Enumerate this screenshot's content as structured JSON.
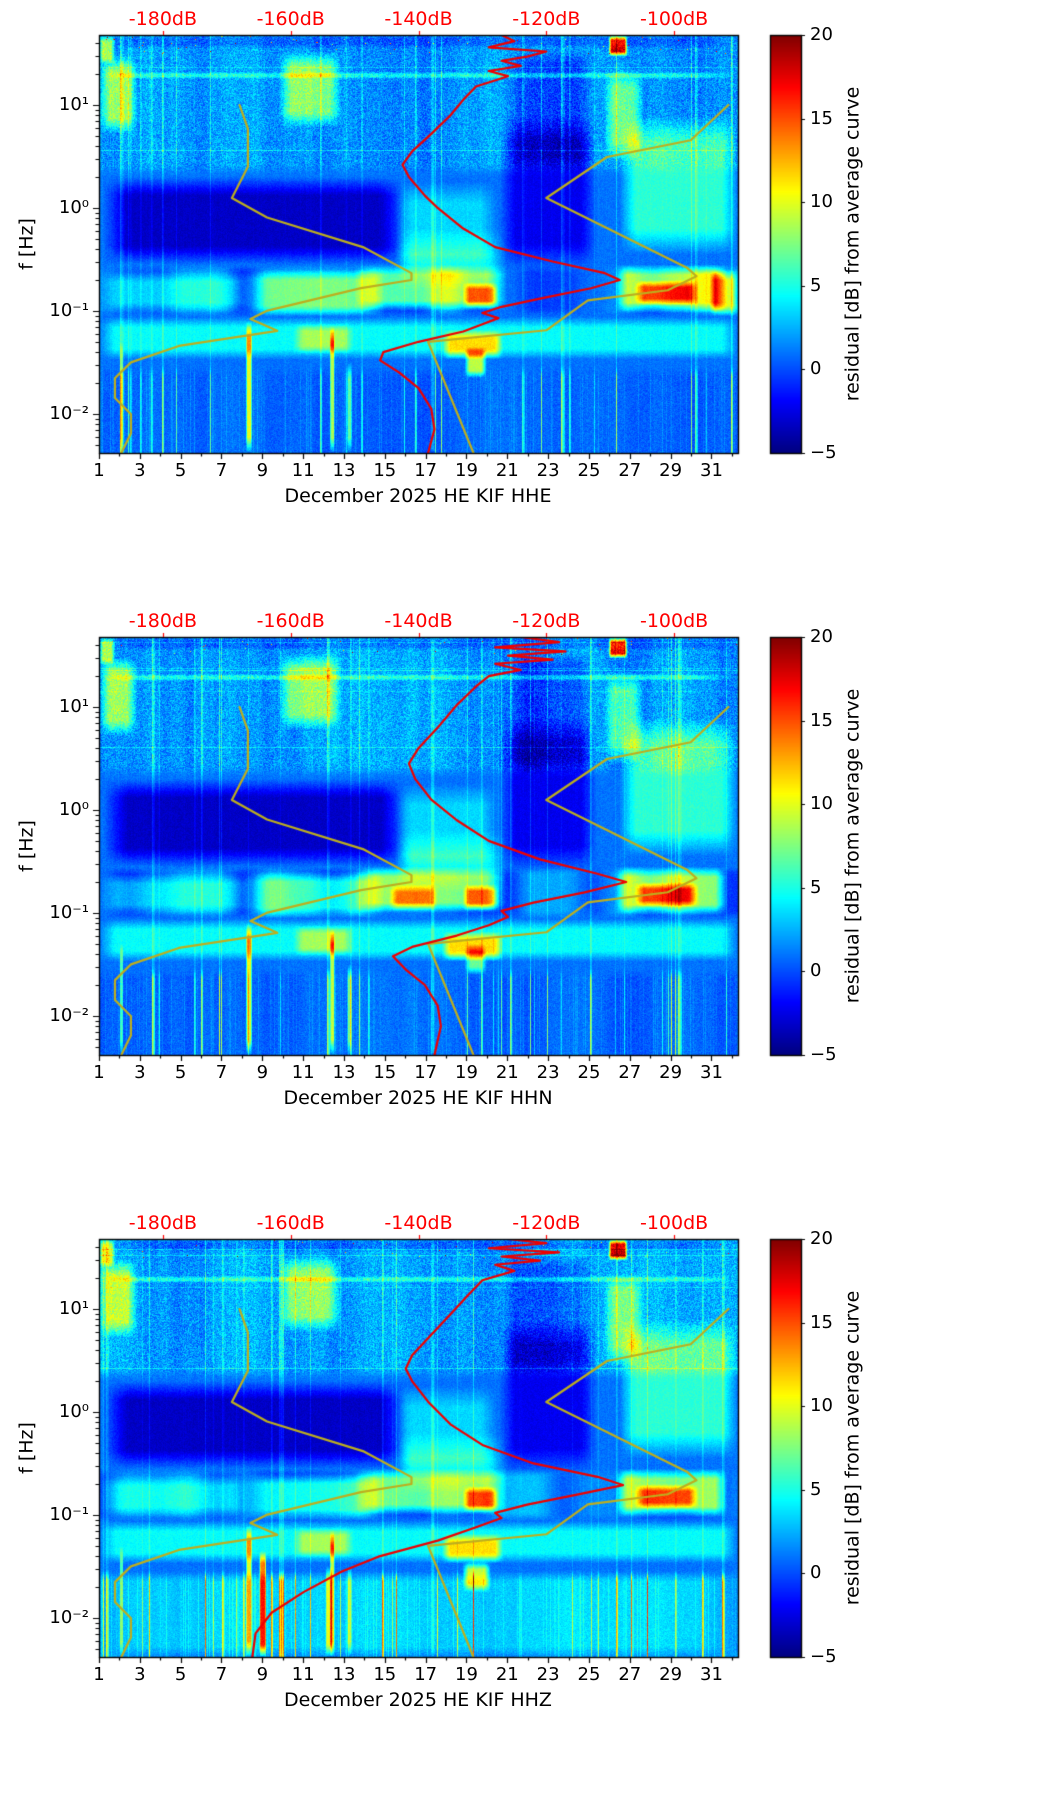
{
  "axes": {
    "ylabel": "f [Hz]",
    "colorbar_label": "residual [dB] from average curve",
    "top_tick_labels": [
      "-180dB",
      "-160dB",
      "-140dB",
      "-120dB",
      "-100dB"
    ],
    "x_tick_labels": [
      "1",
      "3",
      "5",
      "7",
      "9",
      "11",
      "13",
      "15",
      "17",
      "19",
      "21",
      "23",
      "25",
      "27",
      "29",
      "31"
    ],
    "y_tick_labels": [
      "10¹",
      "10⁰",
      "10⁻¹",
      "10⁻²"
    ],
    "colorbar_tick_labels": [
      "20",
      "15",
      "10",
      "5",
      "0",
      "−5"
    ]
  },
  "panels": [
    {
      "xlabel": "December 2025 HE KIF  HHE"
    },
    {
      "xlabel": "December 2025 HE KIF  HHN"
    },
    {
      "xlabel": "December 2025 HE KIF  HHZ"
    }
  ],
  "chart_data": {
    "type": "heatmap",
    "subtype": "seismic noise residual spectrograms, 3 components, with average-spectrum overlay curves",
    "x_axis": {
      "range_days": [
        1,
        32.3
      ],
      "tick_values": [
        1,
        3,
        5,
        7,
        9,
        11,
        13,
        15,
        17,
        19,
        21,
        23,
        25,
        27,
        29,
        31
      ]
    },
    "y_axis": {
      "label": "f [Hz]",
      "scale": "log10",
      "log_range": [
        -2.38,
        1.68
      ],
      "tick_exponents": [
        1,
        0,
        -1,
        -2
      ],
      "tick_values_hz": [
        10,
        1,
        0.1,
        0.01
      ]
    },
    "color_axis": {
      "label": "residual [dB] from average curve",
      "range": [
        -5,
        20
      ],
      "tick_values": [
        20,
        15,
        10,
        5,
        0,
        -5
      ],
      "colormap": "jet"
    },
    "top_axis": {
      "unit": "dB",
      "range_db": [
        -190,
        -90
      ],
      "tick_values": [
        -180,
        -160,
        -140,
        -120,
        -100
      ],
      "color": "#ff0000"
    },
    "overlay_curves": {
      "red_color": "#ee0000",
      "olive_color": "#bdae1f",
      "olive_curve_low_db_logf": [
        [
          -168,
          1.0
        ],
        [
          -166.7,
          0.77
        ],
        [
          -166.7,
          0.4
        ],
        [
          -169.2,
          0.097
        ],
        [
          -163.7,
          -0.093
        ],
        [
          -148.7,
          -0.38
        ],
        [
          -141.1,
          -0.633
        ],
        [
          -141.1,
          -0.7
        ],
        [
          -149,
          -0.778
        ],
        [
          -163.8,
          -1.0
        ],
        [
          -166.3,
          -1.079
        ],
        [
          -162.1,
          -1.193
        ],
        [
          -177.5,
          -1.34
        ],
        [
          -185,
          -1.5
        ],
        [
          -187.5,
          -1.653
        ],
        [
          -187.5,
          -1.845
        ],
        [
          -185,
          -2.004
        ],
        [
          -185,
          -2.188
        ],
        [
          -186.5,
          -2.38
        ]
      ],
      "olive_curve_high_db_logf": [
        [
          -91.5,
          1.0
        ],
        [
          -97.4,
          0.658
        ],
        [
          -110.5,
          0.495
        ],
        [
          -120,
          0.097
        ],
        [
          -98,
          -0.58
        ],
        [
          -96.5,
          -0.663
        ],
        [
          -101,
          -0.799
        ],
        [
          -113.5,
          -0.898
        ],
        [
          -120,
          -1.188
        ],
        [
          -138.5,
          -1.301
        ],
        [
          -131.4,
          -2.38
        ]
      ]
    },
    "heatmap_features": [
      [
        8,
        15,
        -1.05,
        -0.6,
        5,
        1.2,
        0.1
      ],
      [
        13.5,
        21,
        -1.0,
        -0.55,
        7,
        1.0,
        0.1
      ],
      [
        18.8,
        20.6,
        -0.98,
        -0.72,
        8,
        0.35,
        0.07
      ],
      [
        26.3,
        31.8,
        -1.02,
        -0.55,
        8,
        0.6,
        0.1
      ],
      [
        27.2,
        30.4,
        -0.95,
        -0.7,
        8,
        0.5,
        0.07
      ],
      [
        1,
        8.5,
        -1.02,
        -0.62,
        3,
        1.0,
        0.1
      ],
      [
        1,
        32.3,
        -1.47,
        -1.06,
        3.5,
        0.8,
        0.1
      ],
      [
        17.8,
        20.8,
        -1.47,
        -1.18,
        7,
        0.4,
        0.08
      ],
      [
        10.5,
        13.5,
        -1.42,
        -1.12,
        4,
        0.5,
        0.08
      ],
      [
        1.2,
        16,
        -0.55,
        0.3,
        -4.2,
        1.2,
        0.18
      ],
      [
        20.6,
        25.4,
        -0.6,
        0.9,
        -3.2,
        0.8,
        0.25
      ],
      [
        15.5,
        20.5,
        -0.65,
        0.25,
        2.5,
        0.8,
        0.2
      ],
      [
        26.5,
        32.3,
        -0.45,
        0.9,
        4.5,
        0.8,
        0.25
      ],
      [
        1,
        2.9,
        0.72,
        1.48,
        6.5,
        0.5,
        0.15
      ],
      [
        9.8,
        12.9,
        0.78,
        1.52,
        6,
        0.6,
        0.15
      ],
      [
        25.7,
        27.7,
        0.45,
        1.35,
        5,
        0.5,
        0.18
      ],
      [
        25.95,
        26.9,
        1.47,
        1.68,
        16,
        0.15,
        0.05
      ],
      [
        1,
        32.3,
        1.255,
        1.32,
        3,
        2,
        0.02
      ],
      [
        1,
        32.3,
        1.55,
        1.68,
        -1.3,
        2,
        0.04
      ],
      [
        20.8,
        25.3,
        0.35,
        1.55,
        -2.2,
        0.8,
        0.15
      ],
      [
        8.2,
        8.5,
        -2.38,
        -1.1,
        9,
        0.06,
        0.15
      ],
      [
        12.3,
        12.55,
        -2.38,
        -1.15,
        8,
        0.06,
        0.15
      ],
      [
        13.15,
        13.4,
        -2.38,
        -1.5,
        6,
        0.06,
        0.15
      ],
      [
        2.0,
        2.2,
        -2.38,
        -1.3,
        5,
        0.05,
        0.15
      ],
      [
        1,
        1.8,
        1.4,
        1.68,
        7,
        0.2,
        0.06
      ],
      [
        15.5,
        21,
        -0.8,
        -0.2,
        2.5,
        0.8,
        0.25
      ],
      [
        17.25,
        17.45,
        -2.38,
        1.68,
        2,
        0.05,
        0.05
      ]
    ],
    "panels": [
      {
        "channel": "HHE",
        "seed": 7,
        "stripe_gain": 1.0,
        "bottom_base": 0,
        "red_curve_db_logf": [
          [
            -127,
            1.68
          ],
          [
            -125,
            1.62
          ],
          [
            -129,
            1.56
          ],
          [
            -120,
            1.52
          ],
          [
            -123,
            1.47
          ],
          [
            -127,
            1.43
          ],
          [
            -124,
            1.38
          ],
          [
            -129,
            1.33
          ],
          [
            -126,
            1.28
          ],
          [
            -131,
            1.18
          ],
          [
            -133,
            1.05
          ],
          [
            -135,
            0.9
          ],
          [
            -138,
            0.72
          ],
          [
            -141,
            0.55
          ],
          [
            -142.5,
            0.42
          ],
          [
            -141.5,
            0.3
          ],
          [
            -139,
            0.12
          ],
          [
            -137,
            0
          ],
          [
            -133,
            -0.2
          ],
          [
            -128,
            -0.38
          ],
          [
            -119,
            -0.52
          ],
          [
            -111,
            -0.63
          ],
          [
            -108.5,
            -0.7
          ],
          [
            -113,
            -0.78
          ],
          [
            -121,
            -0.88
          ],
          [
            -127,
            -0.96
          ],
          [
            -130,
            -1.02
          ],
          [
            -127.5,
            -1.07
          ],
          [
            -130,
            -1.13
          ],
          [
            -133,
            -1.2
          ],
          [
            -140,
            -1.3
          ],
          [
            -145.5,
            -1.4
          ],
          [
            -146,
            -1.48
          ],
          [
            -143,
            -1.6
          ],
          [
            -140,
            -1.75
          ],
          [
            -138,
            -1.95
          ],
          [
            -137.5,
            -2.15
          ],
          [
            -138.5,
            -2.38
          ]
        ],
        "extra_features": [
          [
            18.9,
            20.0,
            -1.65,
            -1.35,
            8,
            0.25,
            0.07
          ],
          [
            30.9,
            32.3,
            -1.05,
            -0.6,
            7,
            0.3,
            0.1
          ]
        ]
      },
      {
        "channel": "HHN",
        "seed": 11,
        "stripe_gain": 1.05,
        "bottom_base": 0,
        "red_curve_db_logf": [
          [
            -124,
            1.68
          ],
          [
            -118,
            1.63
          ],
          [
            -128,
            1.58
          ],
          [
            -117,
            1.54
          ],
          [
            -126,
            1.5
          ],
          [
            -119,
            1.46
          ],
          [
            -128,
            1.42
          ],
          [
            -124,
            1.36
          ],
          [
            -129,
            1.3
          ],
          [
            -131,
            1.2
          ],
          [
            -134,
            1.02
          ],
          [
            -137,
            0.8
          ],
          [
            -140,
            0.6
          ],
          [
            -141.5,
            0.45
          ],
          [
            -140.5,
            0.3
          ],
          [
            -138,
            0.1
          ],
          [
            -134,
            -0.1
          ],
          [
            -129,
            -0.3
          ],
          [
            -121,
            -0.48
          ],
          [
            -112,
            -0.62
          ],
          [
            -107.5,
            -0.7
          ],
          [
            -114,
            -0.8
          ],
          [
            -122,
            -0.9
          ],
          [
            -127,
            -0.98
          ],
          [
            -126,
            -1.04
          ],
          [
            -129,
            -1.12
          ],
          [
            -134,
            -1.22
          ],
          [
            -141,
            -1.33
          ],
          [
            -144,
            -1.42
          ],
          [
            -142,
            -1.55
          ],
          [
            -139,
            -1.7
          ],
          [
            -137,
            -1.9
          ],
          [
            -136.5,
            -2.1
          ],
          [
            -137.5,
            -2.38
          ]
        ],
        "extra_features": [
          [
            15.2,
            17.6,
            -0.98,
            -0.72,
            6,
            0.4,
            0.08
          ],
          [
            18.9,
            20.0,
            -1.6,
            -1.3,
            6,
            0.3,
            0.08
          ]
        ]
      },
      {
        "channel": "HHZ",
        "seed": 13,
        "stripe_gain": 1.5,
        "bottom_base": 0.8,
        "red_curve_db_logf": [
          [
            -126,
            1.68
          ],
          [
            -120,
            1.64
          ],
          [
            -129,
            1.59
          ],
          [
            -118,
            1.55
          ],
          [
            -127,
            1.51
          ],
          [
            -121,
            1.47
          ],
          [
            -128,
            1.43
          ],
          [
            -125,
            1.37
          ],
          [
            -130,
            1.28
          ],
          [
            -132,
            1.15
          ],
          [
            -135,
            0.95
          ],
          [
            -138,
            0.75
          ],
          [
            -141,
            0.55
          ],
          [
            -142,
            0.42
          ],
          [
            -141,
            0.3
          ],
          [
            -138.5,
            0.1
          ],
          [
            -135,
            -0.12
          ],
          [
            -130,
            -0.32
          ],
          [
            -122,
            -0.5
          ],
          [
            -112,
            -0.63
          ],
          [
            -108,
            -0.71
          ],
          [
            -115,
            -0.8
          ],
          [
            -123,
            -0.9
          ],
          [
            -128,
            -0.98
          ],
          [
            -127,
            -1.03
          ],
          [
            -131,
            -1.12
          ],
          [
            -137,
            -1.25
          ],
          [
            -146,
            -1.4
          ],
          [
            -152,
            -1.55
          ],
          [
            -158,
            -1.75
          ],
          [
            -163,
            -1.95
          ],
          [
            -165.5,
            -2.15
          ],
          [
            -166,
            -2.38
          ]
        ],
        "extra_features": [
          [
            8.85,
            9.2,
            -2.38,
            -1.35,
            13,
            0.07,
            0.12
          ],
          [
            18.8,
            20.2,
            -1.75,
            -1.45,
            8,
            0.3,
            0.08
          ],
          [
            1,
            32.3,
            -2.38,
            -1.55,
            1.8,
            2,
            0.1
          ],
          [
            12.1,
            12.45,
            -2.38,
            -1.5,
            7,
            0.06,
            0.12
          ]
        ]
      }
    ]
  }
}
